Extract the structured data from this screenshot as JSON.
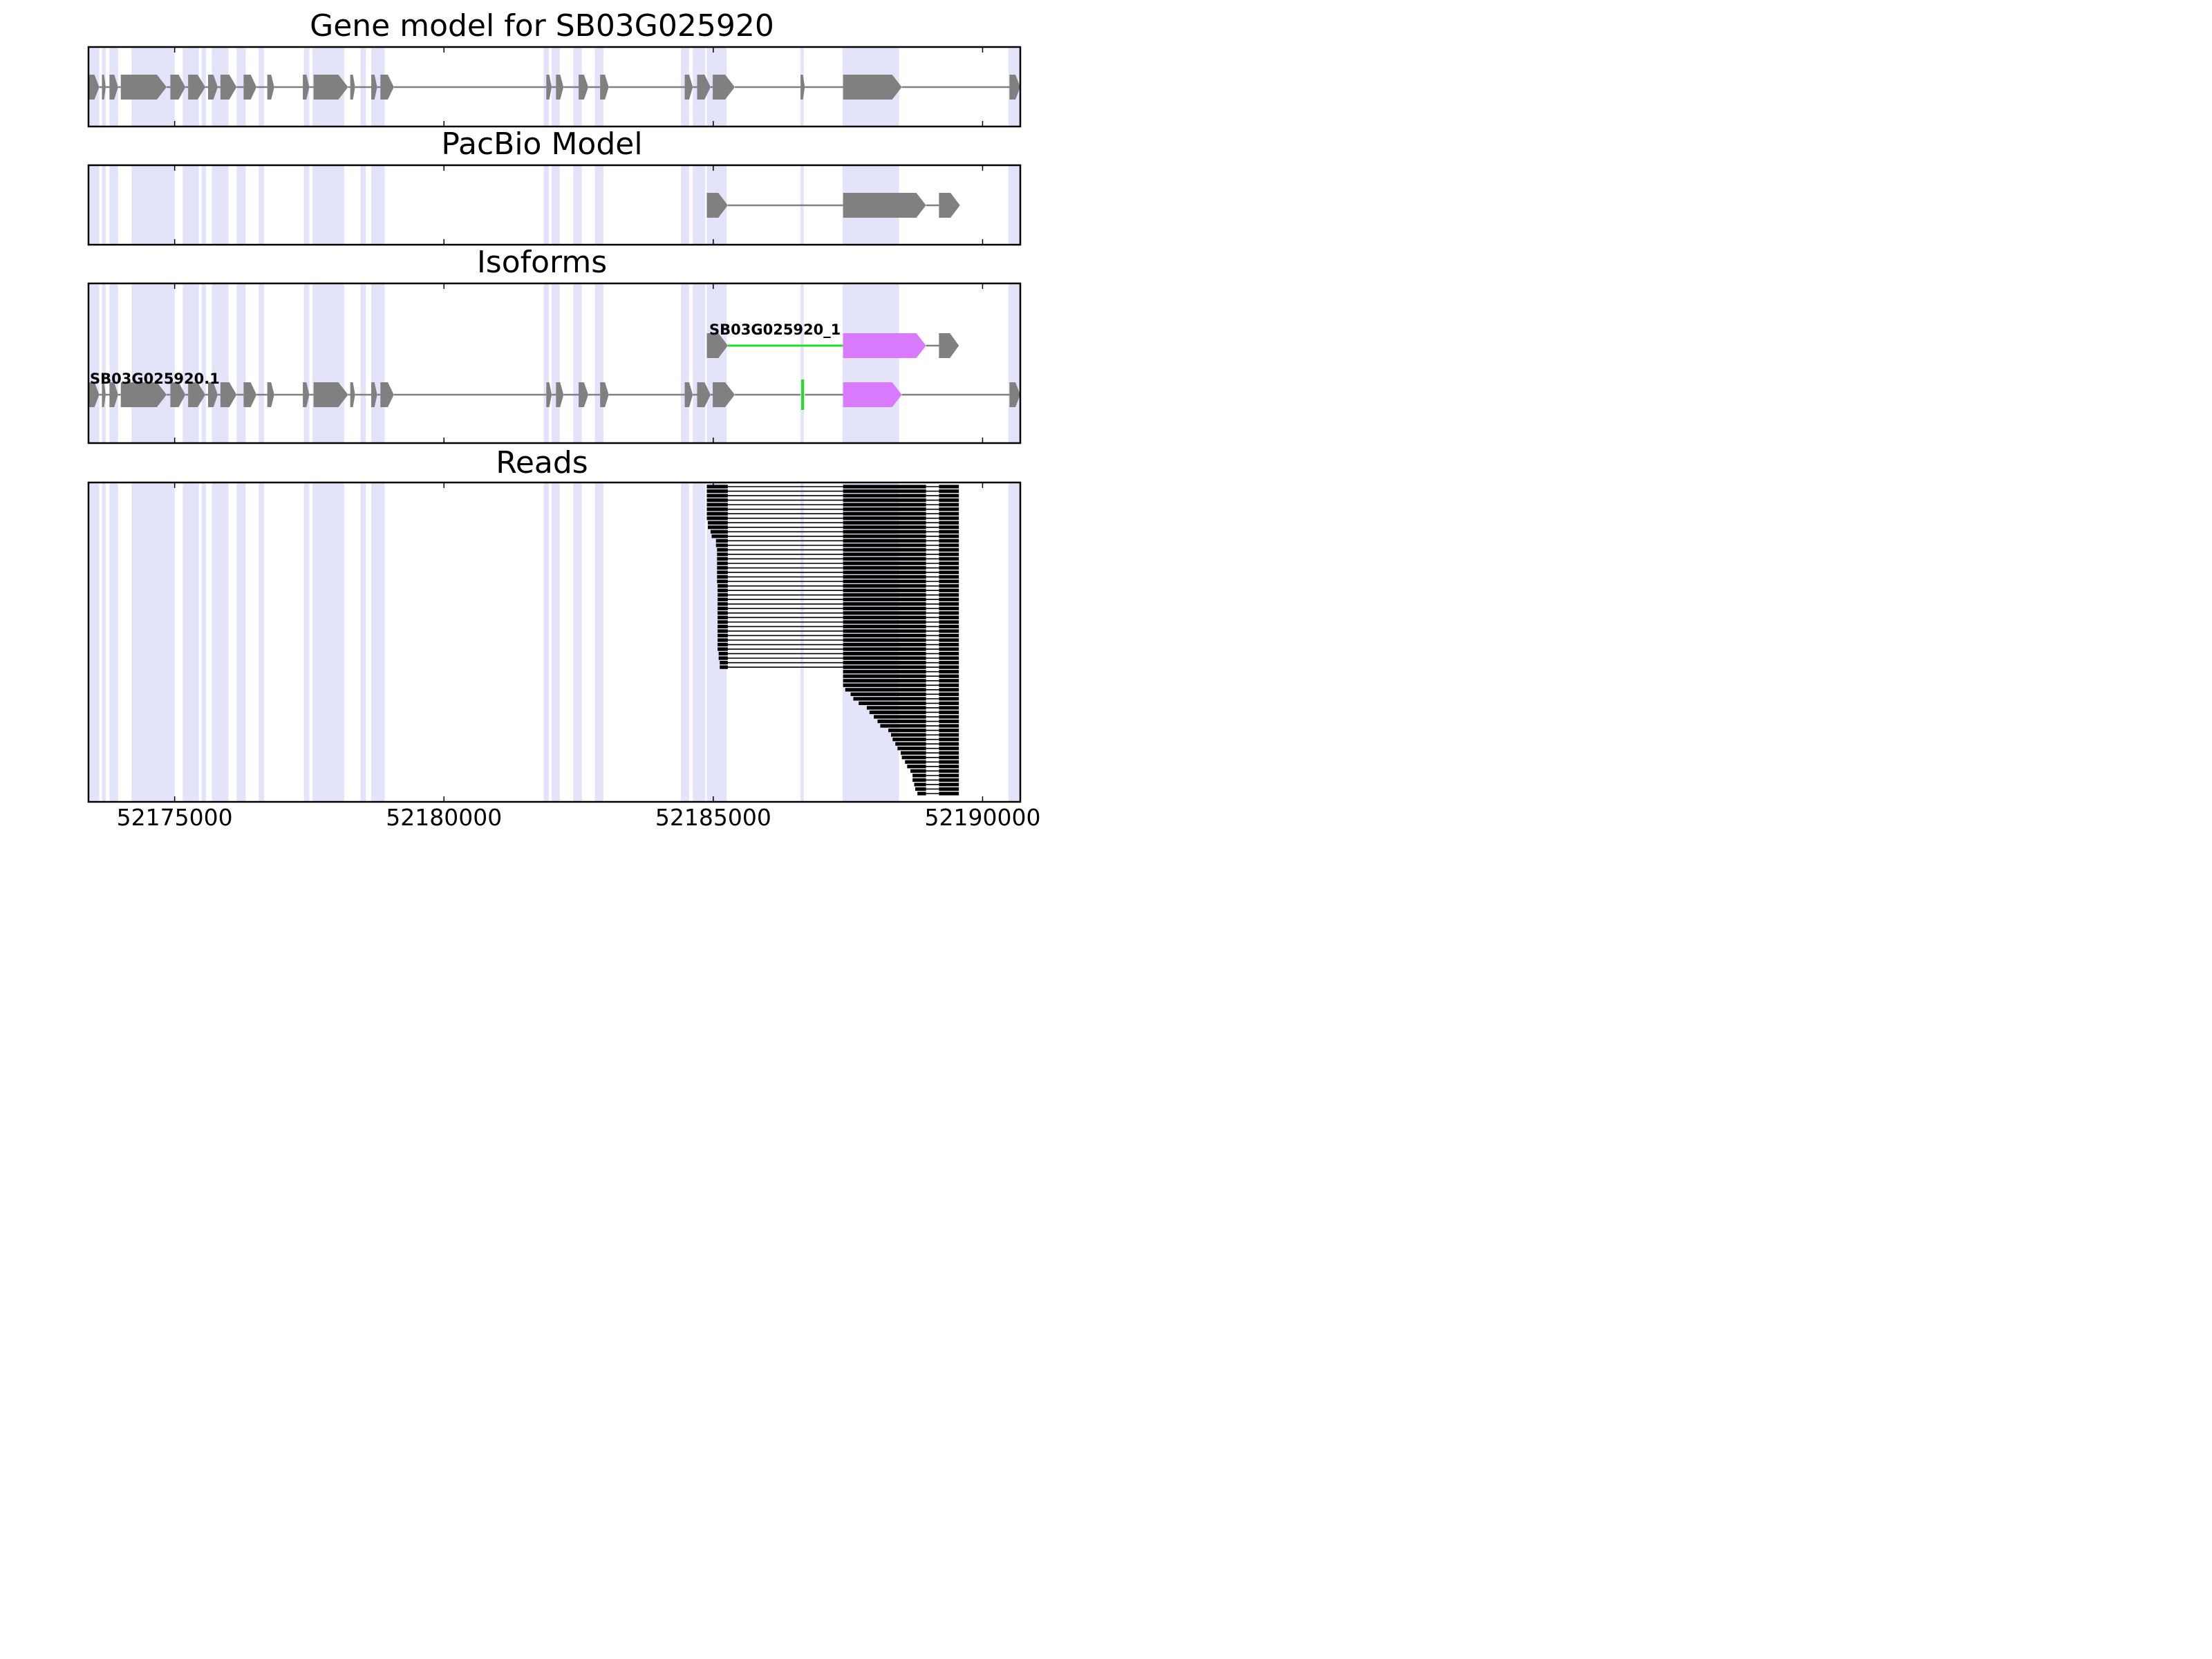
{
  "chart_data": {
    "type": "gene-track",
    "x_range": [
      52173400,
      52190700
    ],
    "xticks": [
      52175000,
      52180000,
      52185000,
      52190000
    ],
    "xtick_labels": [
      "52175000",
      "52180000",
      "52185000",
      "52190000"
    ],
    "colors": {
      "exon": "#808080",
      "intron": "#808080",
      "shade": "#e3e3fa",
      "isoform_novel_exon": "#d97aff",
      "isoform_novel_intron": "#22dd22",
      "read": "#000000",
      "frame": "#000000"
    },
    "shaded_regions": [
      [
        52173400,
        52173600
      ],
      [
        52173650,
        52173720
      ],
      [
        52173790,
        52173950
      ],
      [
        52174200,
        52175000
      ],
      [
        52175150,
        52175450
      ],
      [
        52175500,
        52175580
      ],
      [
        52175690,
        52176000
      ],
      [
        52176150,
        52176320
      ],
      [
        52176560,
        52176660
      ],
      [
        52177400,
        52177500
      ],
      [
        52177560,
        52178150
      ],
      [
        52178450,
        52178550
      ],
      [
        52178650,
        52178900
      ],
      [
        52181850,
        52181950
      ],
      [
        52182000,
        52182150
      ],
      [
        52182400,
        52182560
      ],
      [
        52182800,
        52182960
      ],
      [
        52184400,
        52184550
      ],
      [
        52184620,
        52184850
      ],
      [
        52184880,
        52185250
      ],
      [
        52186620,
        52186680
      ],
      [
        52187400,
        52188450
      ],
      [
        52190480,
        52190700
      ]
    ],
    "panels": [
      {
        "title": "Gene model for SB03G025920",
        "tracks": [
          {
            "label": "",
            "span": [
              52173400,
              52190700
            ],
            "exons": [
              [
                52173400,
                52173600
              ],
              [
                52173650,
                52173720
              ],
              [
                52173790,
                52173950
              ],
              [
                52174000,
                52174850
              ],
              [
                52174920,
                52175200
              ],
              [
                52175250,
                52175570
              ],
              [
                52175620,
                52175800
              ],
              [
                52175850,
                52176150
              ],
              [
                52176280,
                52176520
              ],
              [
                52176720,
                52176850
              ],
              [
                52177380,
                52177500
              ],
              [
                52177580,
                52178220
              ],
              [
                52178260,
                52178350
              ],
              [
                52178650,
                52178760
              ],
              [
                52178820,
                52179070
              ],
              [
                52181900,
                52182000
              ],
              [
                52182080,
                52182220
              ],
              [
                52182500,
                52182680
              ],
              [
                52182900,
                52183060
              ],
              [
                52184470,
                52184620
              ],
              [
                52184700,
                52184950
              ],
              [
                52184990,
                52185400
              ],
              [
                52186620,
                52186700
              ],
              [
                52187410,
                52188500
              ],
              [
                52190500,
                52190700
              ]
            ]
          }
        ]
      },
      {
        "title": "PacBio Model",
        "tracks": [
          {
            "label": "",
            "span": [
              52184880,
              52189300
            ],
            "exons": [
              [
                52184880,
                52185270
              ],
              [
                52187410,
                52188950
              ],
              [
                52189190,
                52189580
              ]
            ]
          }
        ]
      },
      {
        "title": "Isoforms",
        "tracks": [
          {
            "label": "SB03G025920_1",
            "span": [
              52184880,
              52189300
            ],
            "exons": [
              [
                52184880,
                52185270
              ],
              [
                52187410,
                52188950
              ],
              [
                52189190,
                52189560
              ]
            ],
            "novel_exons": [
              [
                52187410,
                52188950
              ]
            ],
            "novel_introns": [
              [
                52185270,
                52187410
              ]
            ]
          },
          {
            "label": "SB03G025920.1",
            "span": [
              52173400,
              52190700
            ],
            "exons": [
              [
                52173400,
                52173600
              ],
              [
                52173650,
                52173720
              ],
              [
                52173790,
                52173950
              ],
              [
                52174000,
                52174850
              ],
              [
                52174920,
                52175200
              ],
              [
                52175250,
                52175570
              ],
              [
                52175620,
                52175800
              ],
              [
                52175850,
                52176150
              ],
              [
                52176280,
                52176520
              ],
              [
                52176720,
                52176850
              ],
              [
                52177380,
                52177500
              ],
              [
                52177580,
                52178220
              ],
              [
                52178260,
                52178350
              ],
              [
                52178650,
                52178760
              ],
              [
                52178820,
                52179070
              ],
              [
                52181900,
                52182000
              ],
              [
                52182080,
                52182220
              ],
              [
                52182500,
                52182680
              ],
              [
                52182900,
                52183060
              ],
              [
                52184470,
                52184620
              ],
              [
                52184700,
                52184950
              ],
              [
                52184990,
                52185400
              ],
              [
                52186620,
                52186700
              ],
              [
                52187410,
                52188500
              ],
              [
                52190500,
                52190700
              ]
            ],
            "novel_exons": [
              [
                52186620,
                52186700
              ],
              [
                52187410,
                52188500
              ]
            ]
          }
        ]
      },
      {
        "title": "Reads",
        "reads": {
          "count": 69,
          "spliced_read_count": 41,
          "exon2": [
            52187410,
            52188950
          ],
          "exon3": [
            52189190,
            52189560
          ],
          "exon1_starts": [
            52184880,
            52184880,
            52184880,
            52184880,
            52184880,
            52184880,
            52184880,
            52184880,
            52184900,
            52184900,
            52184950,
            52184970,
            52185050,
            52185050,
            52185070,
            52185070,
            52185070,
            52185070,
            52185070,
            52185070,
            52185070,
            52185070,
            52185080,
            52185080,
            52185080,
            52185080,
            52185080,
            52185080,
            52185080,
            52185080,
            52185080,
            52185080,
            52185080,
            52185080,
            52185080,
            52185080,
            52185080,
            52185100,
            52185100,
            52185120,
            52185120
          ],
          "exon1_end": 52185270,
          "exon2_starts_unspliced": [
            52187410,
            52187410,
            52187410,
            52187410,
            52187450,
            52187550,
            52187600,
            52187700,
            52187850,
            52187900,
            52187980,
            52188050,
            52188100,
            52188250,
            52188300,
            52188330,
            52188380,
            52188420,
            52188480,
            52188500,
            52188560,
            52188600,
            52188660,
            52188700,
            52188700,
            52188730,
            52188750,
            52188790
          ]
        }
      }
    ]
  }
}
